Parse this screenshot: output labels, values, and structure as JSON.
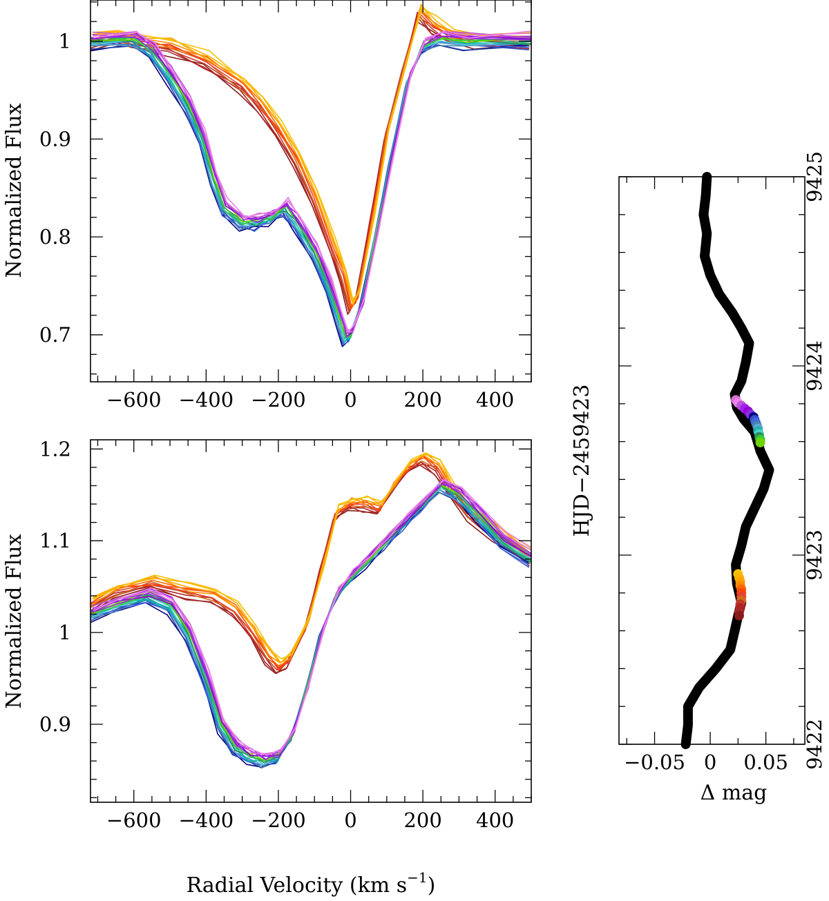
{
  "chart_data": [
    {
      "id": "top",
      "type": "line",
      "title": "",
      "xlabel": "",
      "ylabel": "Normalized Flux",
      "xlim": [
        -720,
        500
      ],
      "ylim": [
        0.652,
        1.042
      ],
      "xticks_major": [
        -600,
        -400,
        -200,
        0,
        200,
        400
      ],
      "xtick_labels": [
        "−600",
        "−400",
        "−200",
        "0",
        "200",
        "400"
      ],
      "yticks_major": [
        0.7,
        0.8,
        0.9,
        1.0
      ],
      "ytick_labels": [
        "0.7",
        "0.8",
        "0.9",
        "1"
      ],
      "x_minor_step": 50,
      "y_minor_step": 0.02,
      "grid": false,
      "groups": {
        "early": {
          "colors": [
            "#8b1a1a",
            "#a52a2a",
            "#b22222",
            "#c0392b",
            "#d2691e",
            "#e34234",
            "#ff4500",
            "#ff6600",
            "#ff8c00",
            "#ffa500",
            "#ffb300",
            "#f4c000"
          ],
          "points": [
            [
              -720,
              1.0
            ],
            [
              -650,
              1.005
            ],
            [
              -600,
              1.0
            ],
            [
              -500,
              0.995
            ],
            [
              -400,
              0.98
            ],
            [
              -300,
              0.955
            ],
            [
              -250,
              0.935
            ],
            [
              -200,
              0.91
            ],
            [
              -150,
              0.88
            ],
            [
              -100,
              0.84
            ],
            [
              -50,
              0.79
            ],
            [
              -20,
              0.76
            ],
            [
              0,
              0.728
            ],
            [
              20,
              0.74
            ],
            [
              60,
              0.82
            ],
            [
              100,
              0.905
            ],
            [
              150,
              0.975
            ],
            [
              190,
              1.03
            ],
            [
              230,
              1.015
            ],
            [
              280,
              1.005
            ],
            [
              350,
              1.0
            ],
            [
              500,
              1.0
            ]
          ]
        },
        "late": {
          "colors": [
            "#000080",
            "#1e3fa0",
            "#3355cc",
            "#4169e1",
            "#4682b4",
            "#5fa8d3",
            "#00aaaa",
            "#20b2aa",
            "#48d1cc",
            "#2e8b57",
            "#3cb371",
            "#32cd32",
            "#6dd400",
            "#8a2be2",
            "#9400d3",
            "#9932cc",
            "#a020f0",
            "#ba55d3",
            "#da70d6",
            "#ee82ee"
          ],
          "points": [
            [
              -720,
              1.0
            ],
            [
              -600,
              1.002
            ],
            [
              -550,
              0.99
            ],
            [
              -500,
              0.965
            ],
            [
              -450,
              0.935
            ],
            [
              -410,
              0.9
            ],
            [
              -380,
              0.86
            ],
            [
              -350,
              0.83
            ],
            [
              -300,
              0.815
            ],
            [
              -260,
              0.815
            ],
            [
              -220,
              0.82
            ],
            [
              -180,
              0.83
            ],
            [
              -150,
              0.815
            ],
            [
              -100,
              0.785
            ],
            [
              -60,
              0.75
            ],
            [
              -30,
              0.715
            ],
            [
              -15,
              0.697
            ],
            [
              0,
              0.7
            ],
            [
              30,
              0.73
            ],
            [
              70,
              0.8
            ],
            [
              110,
              0.875
            ],
            [
              160,
              0.96
            ],
            [
              200,
              0.995
            ],
            [
              250,
              1.003
            ],
            [
              320,
              1.0
            ],
            [
              500,
              1.0
            ]
          ]
        }
      }
    },
    {
      "id": "bottom",
      "type": "line",
      "title": "",
      "xlabel": "Radial Velocity (km s⁻¹)",
      "xlabel_main": "Radial Velocity (km s",
      "xlabel_sup": "−1",
      "xlabel_close": ")",
      "ylabel": "Normalized Flux",
      "xlim": [
        -720,
        500
      ],
      "ylim": [
        0.815,
        1.21
      ],
      "xticks_major": [
        -600,
        -400,
        -200,
        0,
        200,
        400
      ],
      "xtick_labels": [
        "−600",
        "−400",
        "−200",
        "0",
        "200",
        "400"
      ],
      "yticks_major": [
        0.9,
        1.0,
        1.1,
        1.2
      ],
      "ytick_labels": [
        "0.9",
        "1",
        "1.1",
        "1.2"
      ],
      "x_minor_step": 50,
      "y_minor_step": 0.02,
      "grid": false,
      "groups": {
        "early": {
          "colors": [
            "#8b1a1a",
            "#a52a2a",
            "#b22222",
            "#c0392b",
            "#d2691e",
            "#e34234",
            "#ff4500",
            "#ff6600",
            "#ff8c00",
            "#ffa500",
            "#ffb300",
            "#f4c000"
          ],
          "points": [
            [
              -720,
              1.03
            ],
            [
              -650,
              1.045
            ],
            [
              -550,
              1.055
            ],
            [
              -450,
              1.045
            ],
            [
              -380,
              1.04
            ],
            [
              -320,
              1.025
            ],
            [
              -270,
              1.0
            ],
            [
              -230,
              0.975
            ],
            [
              -200,
              0.962
            ],
            [
              -170,
              0.97
            ],
            [
              -120,
              1.01
            ],
            [
              -80,
              1.07
            ],
            [
              -40,
              1.13
            ],
            [
              0,
              1.14
            ],
            [
              40,
              1.14
            ],
            [
              80,
              1.135
            ],
            [
              120,
              1.16
            ],
            [
              160,
              1.18
            ],
            [
              200,
              1.19
            ],
            [
              240,
              1.18
            ],
            [
              280,
              1.155
            ],
            [
              330,
              1.13
            ],
            [
              400,
              1.11
            ],
            [
              500,
              1.08
            ]
          ]
        },
        "late": {
          "colors": [
            "#000080",
            "#1e3fa0",
            "#3355cc",
            "#4169e1",
            "#4682b4",
            "#5fa8d3",
            "#00aaaa",
            "#20b2aa",
            "#48d1cc",
            "#2e8b57",
            "#3cb371",
            "#32cd32",
            "#6dd400",
            "#8a2be2",
            "#9400d3",
            "#9932cc",
            "#a020f0",
            "#ba55d3",
            "#da70d6",
            "#ee82ee"
          ],
          "points": [
            [
              -720,
              1.02
            ],
            [
              -650,
              1.03
            ],
            [
              -560,
              1.04
            ],
            [
              -500,
              1.03
            ],
            [
              -450,
              1.0
            ],
            [
              -400,
              0.95
            ],
            [
              -360,
              0.9
            ],
            [
              -320,
              0.875
            ],
            [
              -280,
              0.865
            ],
            [
              -240,
              0.86
            ],
            [
              -200,
              0.865
            ],
            [
              -160,
              0.89
            ],
            [
              -120,
              0.94
            ],
            [
              -80,
              1.0
            ],
            [
              -40,
              1.04
            ],
            [
              0,
              1.06
            ],
            [
              50,
              1.08
            ],
            [
              100,
              1.1
            ],
            [
              150,
              1.12
            ],
            [
              200,
              1.14
            ],
            [
              250,
              1.16
            ],
            [
              300,
              1.15
            ],
            [
              350,
              1.13
            ],
            [
              420,
              1.1
            ],
            [
              500,
              1.08
            ]
          ]
        }
      }
    },
    {
      "id": "right",
      "type": "line",
      "title": "",
      "xlabel": "Δ mag",
      "ylabel": "HJD−2459423",
      "xlim": [
        -0.082,
        0.085
      ],
      "ylim": [
        9422.0,
        9425.0
      ],
      "xticks_major": [
        -0.05,
        0,
        0.05
      ],
      "xtick_labels": [
        "−0.05",
        "0",
        "0.05"
      ],
      "yticks_major": [
        9422,
        9423,
        9424,
        9425
      ],
      "ytick_labels": [
        "9422",
        "9423",
        "9424",
        "9425"
      ],
      "x_minor_step": 0.025,
      "y_minor_step": 0.2,
      "grid": false,
      "curve": [
        [
          -0.022,
          9422.0
        ],
        [
          -0.02,
          9422.1
        ],
        [
          -0.02,
          9422.2
        ],
        [
          -0.01,
          9422.3
        ],
        [
          0.005,
          9422.4
        ],
        [
          0.018,
          9422.5
        ],
        [
          0.022,
          9422.6
        ],
        [
          0.025,
          9422.68
        ],
        [
          0.028,
          9422.75
        ],
        [
          0.024,
          9422.85
        ],
        [
          0.023,
          9422.95
        ],
        [
          0.028,
          9423.05
        ],
        [
          0.032,
          9423.15
        ],
        [
          0.04,
          9423.25
        ],
        [
          0.048,
          9423.35
        ],
        [
          0.053,
          9423.45
        ],
        [
          0.045,
          9423.55
        ],
        [
          0.04,
          9423.65
        ],
        [
          0.03,
          9423.72
        ],
        [
          0.024,
          9423.78
        ],
        [
          0.022,
          9423.85
        ],
        [
          0.028,
          9423.92
        ],
        [
          0.032,
          9424.02
        ],
        [
          0.035,
          9424.12
        ],
        [
          0.028,
          9424.2
        ],
        [
          0.02,
          9424.28
        ],
        [
          0.008,
          9424.38
        ],
        [
          0.0,
          9424.48
        ],
        [
          -0.005,
          9424.58
        ],
        [
          -0.003,
          9424.7
        ],
        [
          -0.006,
          9424.8
        ],
        [
          -0.004,
          9424.9
        ],
        [
          -0.003,
          9425.0
        ]
      ],
      "highlight_points": [
        {
          "x": 0.023,
          "y": 9423.82,
          "color": "#da70d6"
        },
        {
          "x": 0.025,
          "y": 9423.805,
          "color": "#ee82ee"
        },
        {
          "x": 0.028,
          "y": 9423.79,
          "color": "#ba55d3"
        },
        {
          "x": 0.031,
          "y": 9423.775,
          "color": "#a020f0"
        },
        {
          "x": 0.034,
          "y": 9423.76,
          "color": "#9400d3"
        },
        {
          "x": 0.036,
          "y": 9423.745,
          "color": "#8a2be2"
        },
        {
          "x": 0.039,
          "y": 9423.73,
          "color": "#000080"
        },
        {
          "x": 0.04,
          "y": 9423.715,
          "color": "#3355cc"
        },
        {
          "x": 0.041,
          "y": 9423.7,
          "color": "#4169e1"
        },
        {
          "x": 0.042,
          "y": 9423.685,
          "color": "#4682b4"
        },
        {
          "x": 0.043,
          "y": 9423.67,
          "color": "#5fa8d3"
        },
        {
          "x": 0.043,
          "y": 9423.655,
          "color": "#20b2aa"
        },
        {
          "x": 0.044,
          "y": 9423.64,
          "color": "#48d1cc"
        },
        {
          "x": 0.044,
          "y": 9423.625,
          "color": "#2e8b57"
        },
        {
          "x": 0.045,
          "y": 9423.61,
          "color": "#32cd32"
        },
        {
          "x": 0.045,
          "y": 9423.595,
          "color": "#6dd400"
        },
        {
          "x": 0.025,
          "y": 9422.9,
          "color": "#f4c000"
        },
        {
          "x": 0.026,
          "y": 9422.88,
          "color": "#ffb300"
        },
        {
          "x": 0.027,
          "y": 9422.86,
          "color": "#ffa500"
        },
        {
          "x": 0.027,
          "y": 9422.84,
          "color": "#ff8c00"
        },
        {
          "x": 0.028,
          "y": 9422.82,
          "color": "#ff6600"
        },
        {
          "x": 0.028,
          "y": 9422.8,
          "color": "#ff4500"
        },
        {
          "x": 0.028,
          "y": 9422.78,
          "color": "#e34234"
        },
        {
          "x": 0.028,
          "y": 9422.76,
          "color": "#d2691e"
        },
        {
          "x": 0.027,
          "y": 9422.74,
          "color": "#c0392b"
        },
        {
          "x": 0.027,
          "y": 9422.72,
          "color": "#b22222"
        },
        {
          "x": 0.026,
          "y": 9422.7,
          "color": "#a52a2a"
        },
        {
          "x": 0.026,
          "y": 9422.68,
          "color": "#8b1a1a"
        }
      ]
    }
  ]
}
